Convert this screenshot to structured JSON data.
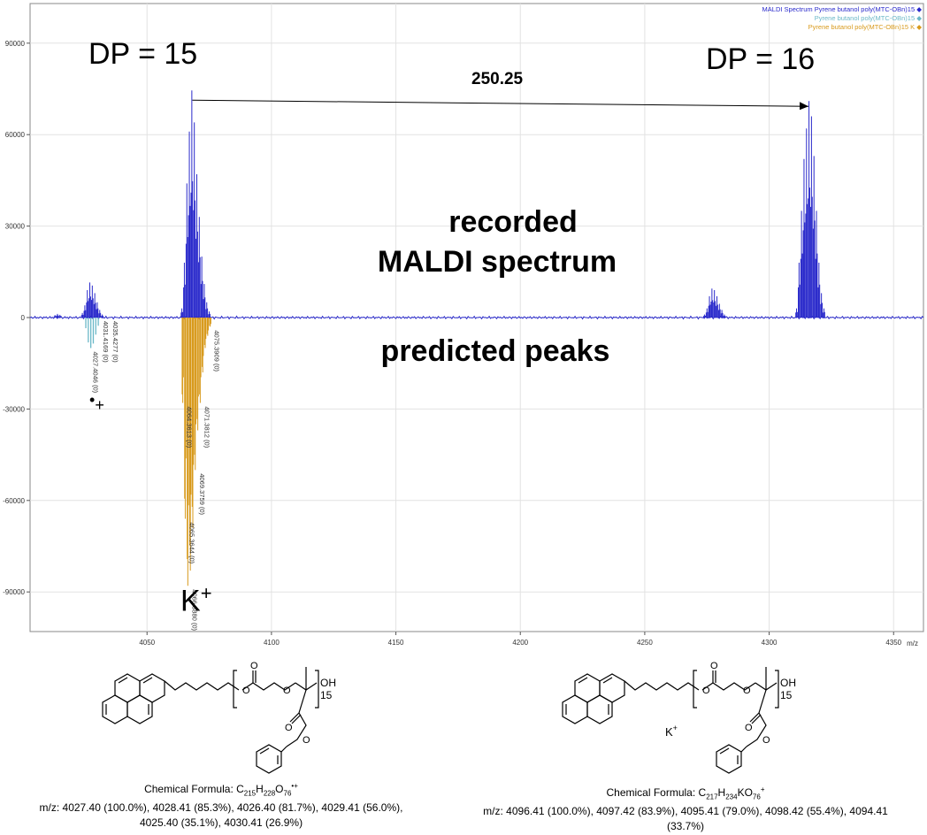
{
  "chart_data": {
    "type": "spectrum",
    "xlabel": "m/z",
    "xlim": [
      4003,
      4362
    ],
    "ylim": [
      -103000,
      103000
    ],
    "xticks": [
      4050,
      4100,
      4150,
      4200,
      4250,
      4300,
      4350
    ],
    "yticks": [
      90000,
      60000,
      30000,
      0,
      -30000,
      -60000,
      -90000
    ],
    "grid": true,
    "legend_position": "top-right",
    "legend": [
      {
        "name": "MALDI Spectrum Pyrene butanol poly(MTC-OBn)15",
        "color": "#2a2acb",
        "marker": "◆"
      },
      {
        "name": "Pyrene butanol poly(MTC-OBn)15",
        "color": "#6bb8c8",
        "marker": "◆"
      },
      {
        "name": "Pyrene butanol poly(MTC-OBn)15 K",
        "color": "#d89a1c",
        "marker": "◆"
      }
    ],
    "recorded_clusters": [
      {
        "mz": [
          4013,
          4014,
          4015
        ],
        "intensity": [
          800,
          1200,
          900
        ]
      },
      {
        "mz": [
          4024,
          4025,
          4026,
          4027,
          4028,
          4029,
          4030,
          4031,
          4032
        ],
        "intensity": [
          1500,
          4000,
          9000,
          11500,
          10500,
          8000,
          5000,
          2500,
          1000
        ]
      },
      {
        "mz": [
          4064,
          4065,
          4066,
          4067,
          4068,
          4069,
          4070,
          4071,
          4072,
          4073,
          4074,
          4075
        ],
        "intensity": [
          3000,
          18000,
          44000,
          61000,
          74500,
          64000,
          47000,
          33000,
          20000,
          11000,
          5000,
          2000
        ]
      },
      {
        "mz": [
          4274,
          4275,
          4276,
          4277,
          4278,
          4279,
          4280,
          4281,
          4282
        ],
        "intensity": [
          1000,
          3000,
          7000,
          9500,
          9000,
          7000,
          4500,
          2500,
          1000
        ]
      },
      {
        "mz": [
          4311,
          4312,
          4313,
          4314,
          4315,
          4316,
          4317,
          4318,
          4319,
          4320,
          4321,
          4322
        ],
        "intensity": [
          3000,
          18000,
          35000,
          52000,
          62000,
          71000,
          66000,
          53000,
          35000,
          18000,
          8000,
          3000
        ]
      }
    ],
    "predicted_radical": {
      "mz": [
        4025.4,
        4026.4,
        4027.4,
        4028.41,
        4029.41,
        4030.41
      ],
      "intensity": [
        -3500,
        -8170,
        -10000,
        -8530,
        -5600,
        -2690
      ]
    },
    "predicted_k": {
      "mz": [
        4064.36,
        4065.36,
        4066.39,
        4067.4,
        4068.4,
        4069.38,
        4070.39,
        4071.38,
        4072.39,
        4073.39,
        4074.39,
        4075.39
      ],
      "intensity": [
        -28000,
        -66000,
        -88000,
        -83000,
        -69000,
        -50000,
        -37000,
        -28000,
        -18000,
        -10000,
        -6000,
        -3000
      ]
    },
    "peak_labels": [
      {
        "text": "4027.4046 (0)",
        "mz": 4027.4
      },
      {
        "text": "4031.4169 (0)",
        "mz": 4031.42
      },
      {
        "text": "4035.4277 (0)",
        "mz": 4035.43
      },
      {
        "text": "4064.3613 (0)",
        "mz": 4064.36
      },
      {
        "text": "4065.3644 (0)",
        "mz": 4065.36
      },
      {
        "text": "4066.3880 (0)",
        "mz": 4066.39
      },
      {
        "text": "4069.3759 (0)",
        "mz": 4069.38
      },
      {
        "text": "4071.3812 (0)",
        "mz": 4071.38
      },
      {
        "text": "4075.3909 (0)",
        "mz": 4075.39
      }
    ],
    "annotations": {
      "dp15": "DP = 15",
      "dp16": "DP = 16",
      "delta": "250.25",
      "recorded_line1": "recorded",
      "recorded_line2": "MALDI spectrum",
      "predicted": "predicted peaks",
      "k_base": "K",
      "k_sup": "+",
      "radical_base": "•",
      "radical_sup": "+"
    }
  },
  "structures": {
    "left": {
      "formula_label": "Chemical Formula: C",
      "formula_parts": [
        {
          "t": "Chemical Formula: C",
          "s": "n"
        },
        {
          "t": "215",
          "s": "sub"
        },
        {
          "t": "H",
          "s": "n"
        },
        {
          "t": "228",
          "s": "sub"
        },
        {
          "t": "O",
          "s": "n"
        },
        {
          "t": "76",
          "s": "sub"
        },
        {
          "t": "•+",
          "s": "sup"
        }
      ],
      "mz_line1": "m/z: 4027.40 (100.0%), 4028.41 (85.3%), 4026.40 (81.7%), 4029.41 (56.0%),",
      "mz_line2": "4025.40 (35.1%), 4030.41 (26.9%)",
      "n": "15",
      "end": "OH"
    },
    "right": {
      "formula_parts": [
        {
          "t": "Chemical Formula: C",
          "s": "n"
        },
        {
          "t": "217",
          "s": "sub"
        },
        {
          "t": "H",
          "s": "n"
        },
        {
          "t": "234",
          "s": "sub"
        },
        {
          "t": "KO",
          "s": "n"
        },
        {
          "t": "76",
          "s": "sub"
        },
        {
          "t": "+",
          "s": "sup"
        }
      ],
      "mz_line1": "m/z: 4096.41 (100.0%), 4097.42 (83.9%), 4095.41 (79.0%), 4098.42 (55.4%), 4094.41",
      "mz_line2": "(33.7%)",
      "n": "15",
      "end": "OH",
      "counterion": "K",
      "counterion_sup": "+"
    }
  }
}
